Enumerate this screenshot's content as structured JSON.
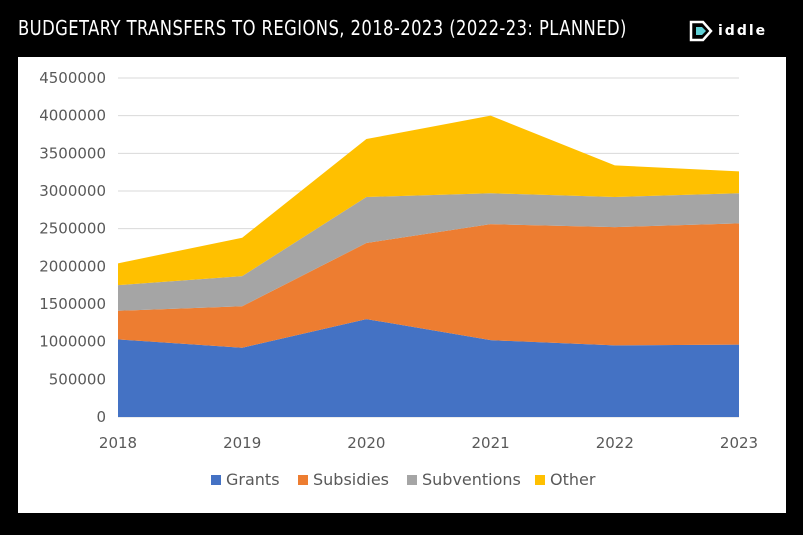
{
  "header": {
    "title": "BUDGETARY TRANSFERS TO REGIONS, 2018-2023 (2022-23: PLANNED)",
    "logo_text": "iddle",
    "logo_icon": "riddle-logo-icon"
  },
  "colors": {
    "background": "#000000",
    "panel": "#ffffff",
    "grid": "#d9d9d9",
    "axis_text": "#595959"
  },
  "chart_data": {
    "type": "area",
    "stacked": true,
    "title": "BUDGETARY TRANSFERS TO REGIONS, 2018-2023 (2022-23: PLANNED)",
    "xlabel": "",
    "ylabel": "",
    "categories": [
      "2018",
      "2019",
      "2020",
      "2021",
      "2022",
      "2023"
    ],
    "yticks": [
      "0",
      "500000",
      "1000000",
      "1500000",
      "2000000",
      "2500000",
      "3000000",
      "3500000",
      "4000000",
      "4500000"
    ],
    "ylim": [
      0,
      4500000
    ],
    "grid": true,
    "legend_position": "bottom",
    "series": [
      {
        "name": "Grants",
        "color": "#4472C4",
        "values": [
          1030000,
          920000,
          1300000,
          1020000,
          950000,
          960000
        ]
      },
      {
        "name": "Subsidies",
        "color": "#ED7D31",
        "values": [
          380000,
          550000,
          1010000,
          1540000,
          1570000,
          1610000
        ]
      },
      {
        "name": "Subventions",
        "color": "#A5A5A5",
        "values": [
          340000,
          400000,
          610000,
          410000,
          400000,
          400000
        ]
      },
      {
        "name": "Other",
        "color": "#FFC000",
        "values": [
          290000,
          510000,
          770000,
          1030000,
          420000,
          290000
        ]
      }
    ]
  }
}
